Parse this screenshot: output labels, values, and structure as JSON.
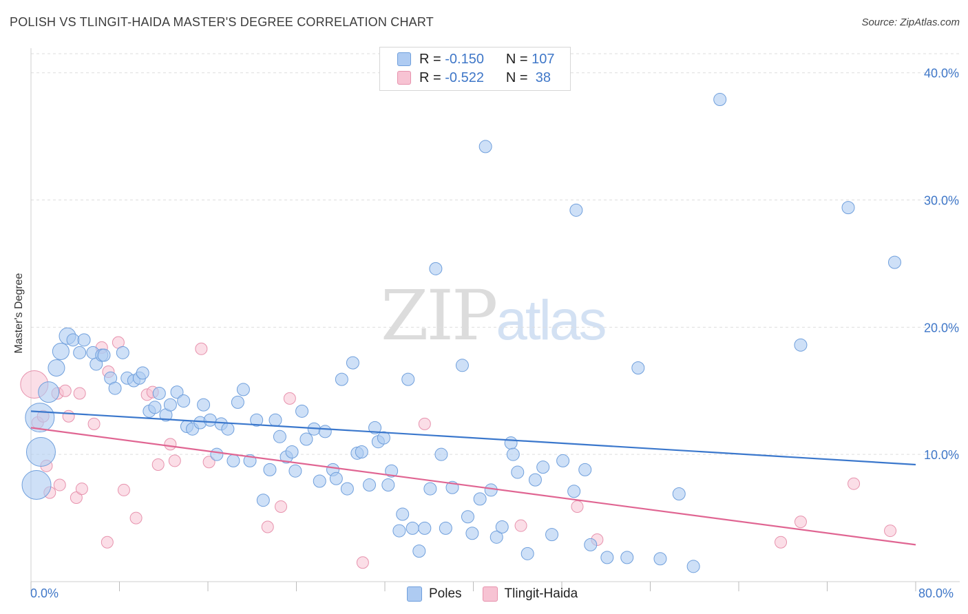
{
  "header": {
    "title": "POLISH VS TLINGIT-HAIDA MASTER'S DEGREE CORRELATION CHART",
    "source": "Source: ZipAtlas.com"
  },
  "watermark": {
    "part1": "ZIP",
    "part2": "atlas"
  },
  "legend": {
    "rows": [
      {
        "r_label": "R =",
        "r_value": "-0.150",
        "n_label": "N =",
        "n_value": "107"
      },
      {
        "r_label": "R =",
        "r_value": "-0.522",
        "n_label": "N =",
        "n_value": " 38"
      }
    ]
  },
  "colors": {
    "poles_fill": "#aecbf2",
    "poles_stroke": "#6f9fdc",
    "poles_line": "#3a77cc",
    "tlingit_fill": "#f7c3d3",
    "tlingit_stroke": "#e792ad",
    "tlingit_line": "#e06592",
    "tick_label": "#3f77c8",
    "grid": "#dddddd"
  },
  "chart_data": {
    "type": "scatter",
    "title": "POLISH VS TLINGIT-HAIDA MASTER'S DEGREE CORRELATION CHART",
    "xlabel": "",
    "ylabel": "Master's Degree",
    "xlim": [
      0,
      80
    ],
    "ylim": [
      0,
      41.5
    ],
    "x_tick_labels": [
      "0.0%",
      "80.0%"
    ],
    "y_ticks": [
      10,
      20,
      30,
      40
    ],
    "y_tick_labels": [
      "10.0%",
      "20.0%",
      "30.0%",
      "40.0%"
    ],
    "grid": "horizontal dashed",
    "legend_position": "top-center and bottom",
    "series": [
      {
        "name": "Poles",
        "R": -0.15,
        "N": 107,
        "trend": {
          "x0": 0,
          "y0": 13.4,
          "x1": 80,
          "y1": 9.2
        },
        "points": [
          [
            0.8,
            12.9
          ],
          [
            0.9,
            10.2
          ],
          [
            0.5,
            7.6
          ],
          [
            1.6,
            14.9
          ],
          [
            2.3,
            16.8
          ],
          [
            2.7,
            18.1
          ],
          [
            3.3,
            19.3
          ],
          [
            4.4,
            18.0
          ],
          [
            3.8,
            19.0
          ],
          [
            4.8,
            19.0
          ],
          [
            5.6,
            18.0
          ],
          [
            5.9,
            17.1
          ],
          [
            6.4,
            17.8
          ],
          [
            6.6,
            17.8
          ],
          [
            7.2,
            16.0
          ],
          [
            7.6,
            15.2
          ],
          [
            8.3,
            18.0
          ],
          [
            8.7,
            16.0
          ],
          [
            9.3,
            15.8
          ],
          [
            9.8,
            16.0
          ],
          [
            10.1,
            16.4
          ],
          [
            10.7,
            13.4
          ],
          [
            11.2,
            13.7
          ],
          [
            11.6,
            14.8
          ],
          [
            12.2,
            13.1
          ],
          [
            12.6,
            13.9
          ],
          [
            13.2,
            14.9
          ],
          [
            13.8,
            14.2
          ],
          [
            14.1,
            12.2
          ],
          [
            14.6,
            12.0
          ],
          [
            15.3,
            12.5
          ],
          [
            15.6,
            13.9
          ],
          [
            16.2,
            12.7
          ],
          [
            16.8,
            10.0
          ],
          [
            17.2,
            12.4
          ],
          [
            17.8,
            12.0
          ],
          [
            18.3,
            9.5
          ],
          [
            18.7,
            14.1
          ],
          [
            19.2,
            15.1
          ],
          [
            19.8,
            9.5
          ],
          [
            20.4,
            12.7
          ],
          [
            21.0,
            6.4
          ],
          [
            21.6,
            8.8
          ],
          [
            22.1,
            12.7
          ],
          [
            22.5,
            11.4
          ],
          [
            23.1,
            9.8
          ],
          [
            23.6,
            10.2
          ],
          [
            23.9,
            8.7
          ],
          [
            24.5,
            13.4
          ],
          [
            24.9,
            11.2
          ],
          [
            25.6,
            12.0
          ],
          [
            26.1,
            7.9
          ],
          [
            26.6,
            11.8
          ],
          [
            27.3,
            8.8
          ],
          [
            27.6,
            8.1
          ],
          [
            28.1,
            15.9
          ],
          [
            28.6,
            7.3
          ],
          [
            29.1,
            17.2
          ],
          [
            29.5,
            10.1
          ],
          [
            29.9,
            10.2
          ],
          [
            30.6,
            7.6
          ],
          [
            31.1,
            12.1
          ],
          [
            31.4,
            11.0
          ],
          [
            31.9,
            11.3
          ],
          [
            32.3,
            7.6
          ],
          [
            32.6,
            8.7
          ],
          [
            33.3,
            4.0
          ],
          [
            33.6,
            5.3
          ],
          [
            34.1,
            15.9
          ],
          [
            34.5,
            4.2
          ],
          [
            35.1,
            2.4
          ],
          [
            35.6,
            4.2
          ],
          [
            36.1,
            7.3
          ],
          [
            36.6,
            24.6
          ],
          [
            37.1,
            10.0
          ],
          [
            37.5,
            4.2
          ],
          [
            38.1,
            7.4
          ],
          [
            39.0,
            17.0
          ],
          [
            39.5,
            5.1
          ],
          [
            39.9,
            3.8
          ],
          [
            40.6,
            6.5
          ],
          [
            41.1,
            34.2
          ],
          [
            41.6,
            7.2
          ],
          [
            42.1,
            3.5
          ],
          [
            42.6,
            4.3
          ],
          [
            43.4,
            10.9
          ],
          [
            43.6,
            10.0
          ],
          [
            44.0,
            8.6
          ],
          [
            44.9,
            2.2
          ],
          [
            45.6,
            8.0
          ],
          [
            46.3,
            9.0
          ],
          [
            47.1,
            3.7
          ],
          [
            48.1,
            9.5
          ],
          [
            49.1,
            7.1
          ],
          [
            49.3,
            29.2
          ],
          [
            50.1,
            8.8
          ],
          [
            50.6,
            2.9
          ],
          [
            52.1,
            1.9
          ],
          [
            53.9,
            1.9
          ],
          [
            54.9,
            16.8
          ],
          [
            56.9,
            1.8
          ],
          [
            58.6,
            6.9
          ],
          [
            59.9,
            1.2
          ],
          [
            62.3,
            37.9
          ],
          [
            69.6,
            18.6
          ],
          [
            73.9,
            29.4
          ],
          [
            78.1,
            25.1
          ]
        ]
      },
      {
        "name": "Tlingit-Haida",
        "R": -0.522,
        "N": 38,
        "trend": {
          "x0": 0,
          "y0": 12.1,
          "x1": 80,
          "y1": 2.9
        },
        "points": [
          [
            0.3,
            15.5
          ],
          [
            0.6,
            12.5
          ],
          [
            1.1,
            13.0
          ],
          [
            1.4,
            9.1
          ],
          [
            1.7,
            7.0
          ],
          [
            2.4,
            14.8
          ],
          [
            2.6,
            7.6
          ],
          [
            3.1,
            15.0
          ],
          [
            3.4,
            13.0
          ],
          [
            4.1,
            6.6
          ],
          [
            4.4,
            14.8
          ],
          [
            4.6,
            7.3
          ],
          [
            5.7,
            12.4
          ],
          [
            6.4,
            18.4
          ],
          [
            6.9,
            3.1
          ],
          [
            7.0,
            16.5
          ],
          [
            7.9,
            18.8
          ],
          [
            8.4,
            7.2
          ],
          [
            9.5,
            5.0
          ],
          [
            10.5,
            14.7
          ],
          [
            11.0,
            14.9
          ],
          [
            11.5,
            9.2
          ],
          [
            12.6,
            10.8
          ],
          [
            13.0,
            9.5
          ],
          [
            15.4,
            18.3
          ],
          [
            16.1,
            9.4
          ],
          [
            21.4,
            4.3
          ],
          [
            22.6,
            5.9
          ],
          [
            23.4,
            14.4
          ],
          [
            30.0,
            1.5
          ],
          [
            35.6,
            12.4
          ],
          [
            44.3,
            4.4
          ],
          [
            49.4,
            5.9
          ],
          [
            51.2,
            3.3
          ],
          [
            67.8,
            3.1
          ],
          [
            69.6,
            4.7
          ],
          [
            74.4,
            7.7
          ],
          [
            77.7,
            4.0
          ]
        ]
      }
    ]
  }
}
